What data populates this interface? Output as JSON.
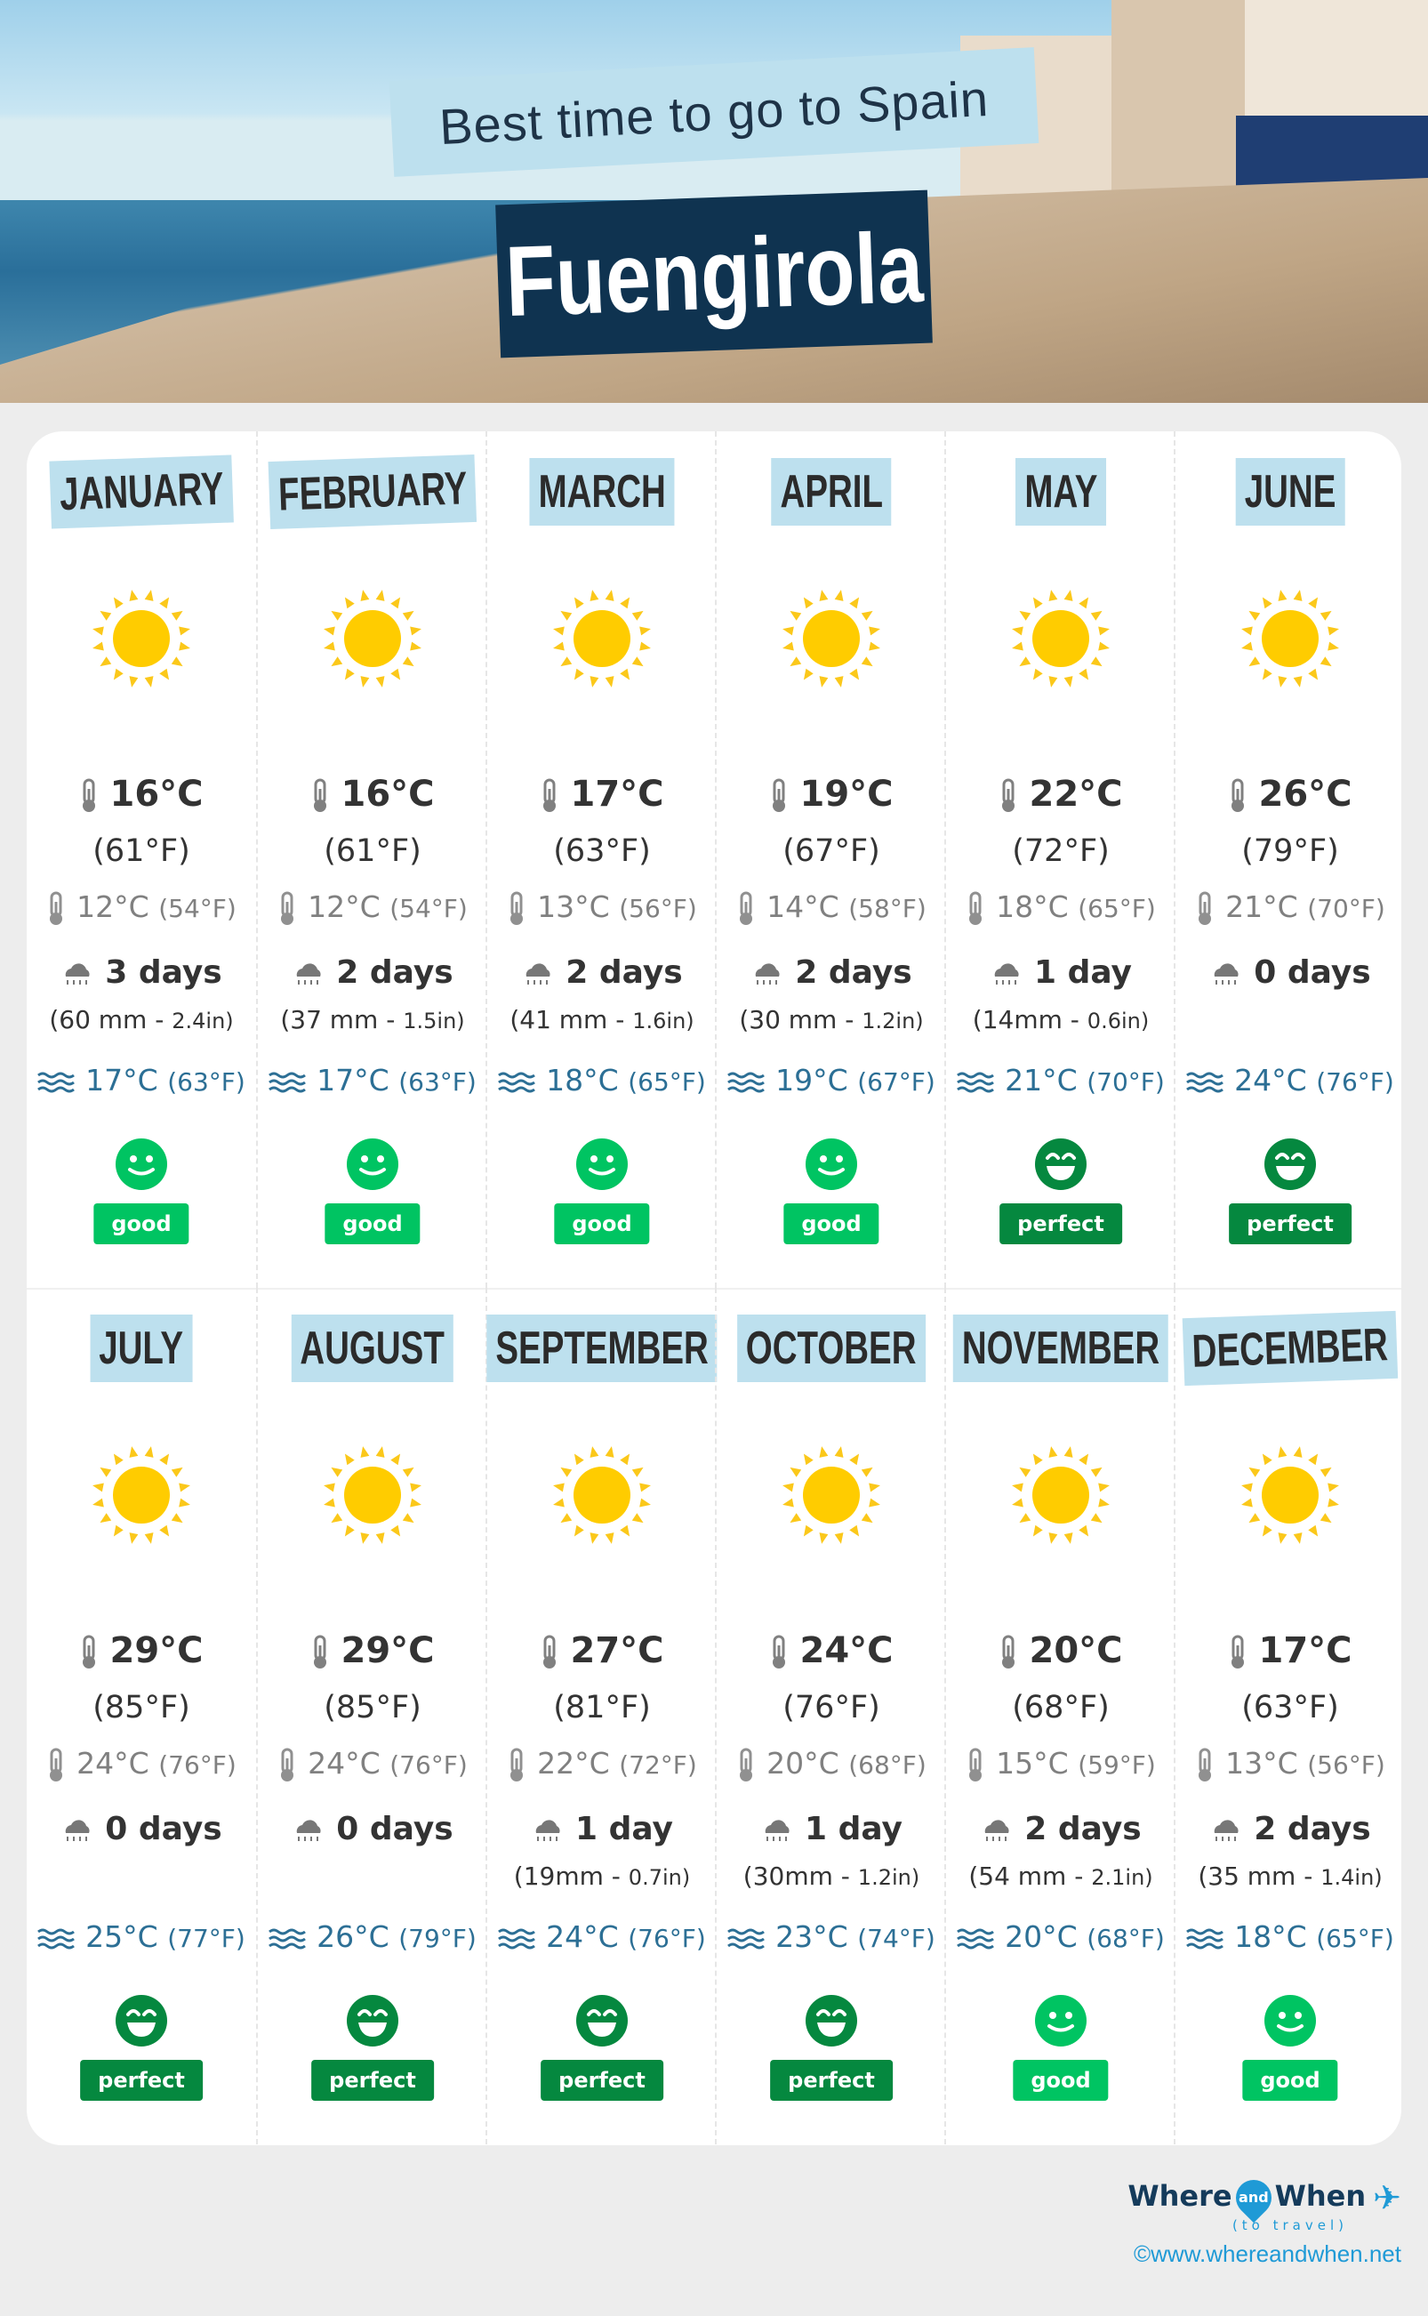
{
  "header": {
    "subtitle": "Best time to go to Spain",
    "title": "Fuengirola"
  },
  "colors": {
    "good": "#00c462",
    "perfect": "#05883f",
    "label_bg": "#bde0ee",
    "sea_text": "#2c6f95"
  },
  "months": [
    {
      "name": "JANUARY",
      "weather_icon": "sun-icon",
      "high_c": "16°C",
      "high_f": "(61°F)",
      "low_c": "12°C",
      "low_f": "(54°F)",
      "rain_days": "3 days",
      "rain_mm": "(60 mm - ",
      "rain_in": "2.4in)",
      "sea_c": "17°C",
      "sea_f": "(63°F)",
      "rating": "good"
    },
    {
      "name": "FEBRUARY",
      "weather_icon": "sun-icon",
      "high_c": "16°C",
      "high_f": "(61°F)",
      "low_c": "12°C",
      "low_f": "(54°F)",
      "rain_days": "2 days",
      "rain_mm": "(37 mm - ",
      "rain_in": "1.5in)",
      "sea_c": "17°C",
      "sea_f": "(63°F)",
      "rating": "good"
    },
    {
      "name": "MARCH",
      "weather_icon": "sun-icon",
      "high_c": "17°C",
      "high_f": "(63°F)",
      "low_c": "13°C",
      "low_f": "(56°F)",
      "rain_days": "2 days",
      "rain_mm": "(41 mm - ",
      "rain_in": "1.6in)",
      "sea_c": "18°C",
      "sea_f": "(65°F)",
      "rating": "good"
    },
    {
      "name": "APRIL",
      "weather_icon": "sun-icon",
      "high_c": "19°C",
      "high_f": "(67°F)",
      "low_c": "14°C",
      "low_f": "(58°F)",
      "rain_days": "2 days",
      "rain_mm": "(30 mm - ",
      "rain_in": "1.2in)",
      "sea_c": "19°C",
      "sea_f": "(67°F)",
      "rating": "good"
    },
    {
      "name": "MAY",
      "weather_icon": "sun-icon",
      "high_c": "22°C",
      "high_f": "(72°F)",
      "low_c": "18°C",
      "low_f": "(65°F)",
      "rain_days": "1 day",
      "rain_mm": "(14mm - ",
      "rain_in": "0.6in)",
      "sea_c": "21°C",
      "sea_f": "(70°F)",
      "rating": "perfect"
    },
    {
      "name": "JUNE",
      "weather_icon": "sun-icon",
      "high_c": "26°C",
      "high_f": "(79°F)",
      "low_c": "21°C",
      "low_f": "(70°F)",
      "rain_days": "0 days",
      "rain_mm": "",
      "rain_in": "",
      "sea_c": "24°C",
      "sea_f": "(76°F)",
      "rating": "perfect"
    },
    {
      "name": "JULY",
      "weather_icon": "sun-icon",
      "high_c": "29°C",
      "high_f": "(85°F)",
      "low_c": "24°C",
      "low_f": "(76°F)",
      "rain_days": "0 days",
      "rain_mm": "",
      "rain_in": "",
      "sea_c": "25°C",
      "sea_f": "(77°F)",
      "rating": "perfect"
    },
    {
      "name": "AUGUST",
      "weather_icon": "sun-icon",
      "high_c": "29°C",
      "high_f": "(85°F)",
      "low_c": "24°C",
      "low_f": "(76°F)",
      "rain_days": "0 days",
      "rain_mm": "",
      "rain_in": "",
      "sea_c": "26°C",
      "sea_f": "(79°F)",
      "rating": "perfect"
    },
    {
      "name": "SEPTEMBER",
      "weather_icon": "sun-icon",
      "high_c": "27°C",
      "high_f": "(81°F)",
      "low_c": "22°C",
      "low_f": "(72°F)",
      "rain_days": "1 day",
      "rain_mm": "(19mm - ",
      "rain_in": "0.7in)",
      "sea_c": "24°C",
      "sea_f": "(76°F)",
      "rating": "perfect"
    },
    {
      "name": "OCTOBER",
      "weather_icon": "sun-icon",
      "high_c": "24°C",
      "high_f": "(76°F)",
      "low_c": "20°C",
      "low_f": "(68°F)",
      "rain_days": "1 day",
      "rain_mm": "(30mm - ",
      "rain_in": "1.2in)",
      "sea_c": "23°C",
      "sea_f": "(74°F)",
      "rating": "perfect"
    },
    {
      "name": "NOVEMBER",
      "weather_icon": "sun-icon",
      "high_c": "20°C",
      "high_f": "(68°F)",
      "low_c": "15°C",
      "low_f": "(59°F)",
      "rain_days": "2 days",
      "rain_mm": "(54 mm - ",
      "rain_in": "2.1in)",
      "sea_c": "20°C",
      "sea_f": "(68°F)",
      "rating": "good"
    },
    {
      "name": "DECEMBER",
      "weather_icon": "sun-icon",
      "high_c": "17°C",
      "high_f": "(63°F)",
      "low_c": "13°C",
      "low_f": "(56°F)",
      "rain_days": "2 days",
      "rain_mm": "(35 mm - ",
      "rain_in": "1.4in)",
      "sea_c": "18°C",
      "sea_f": "(65°F)",
      "rating": "good"
    }
  ],
  "footer": {
    "logo_where": "Where",
    "logo_and": "and",
    "logo_when": "When",
    "logo_tagline": "(to travel)",
    "url": "©www.whereandwhen.net"
  }
}
